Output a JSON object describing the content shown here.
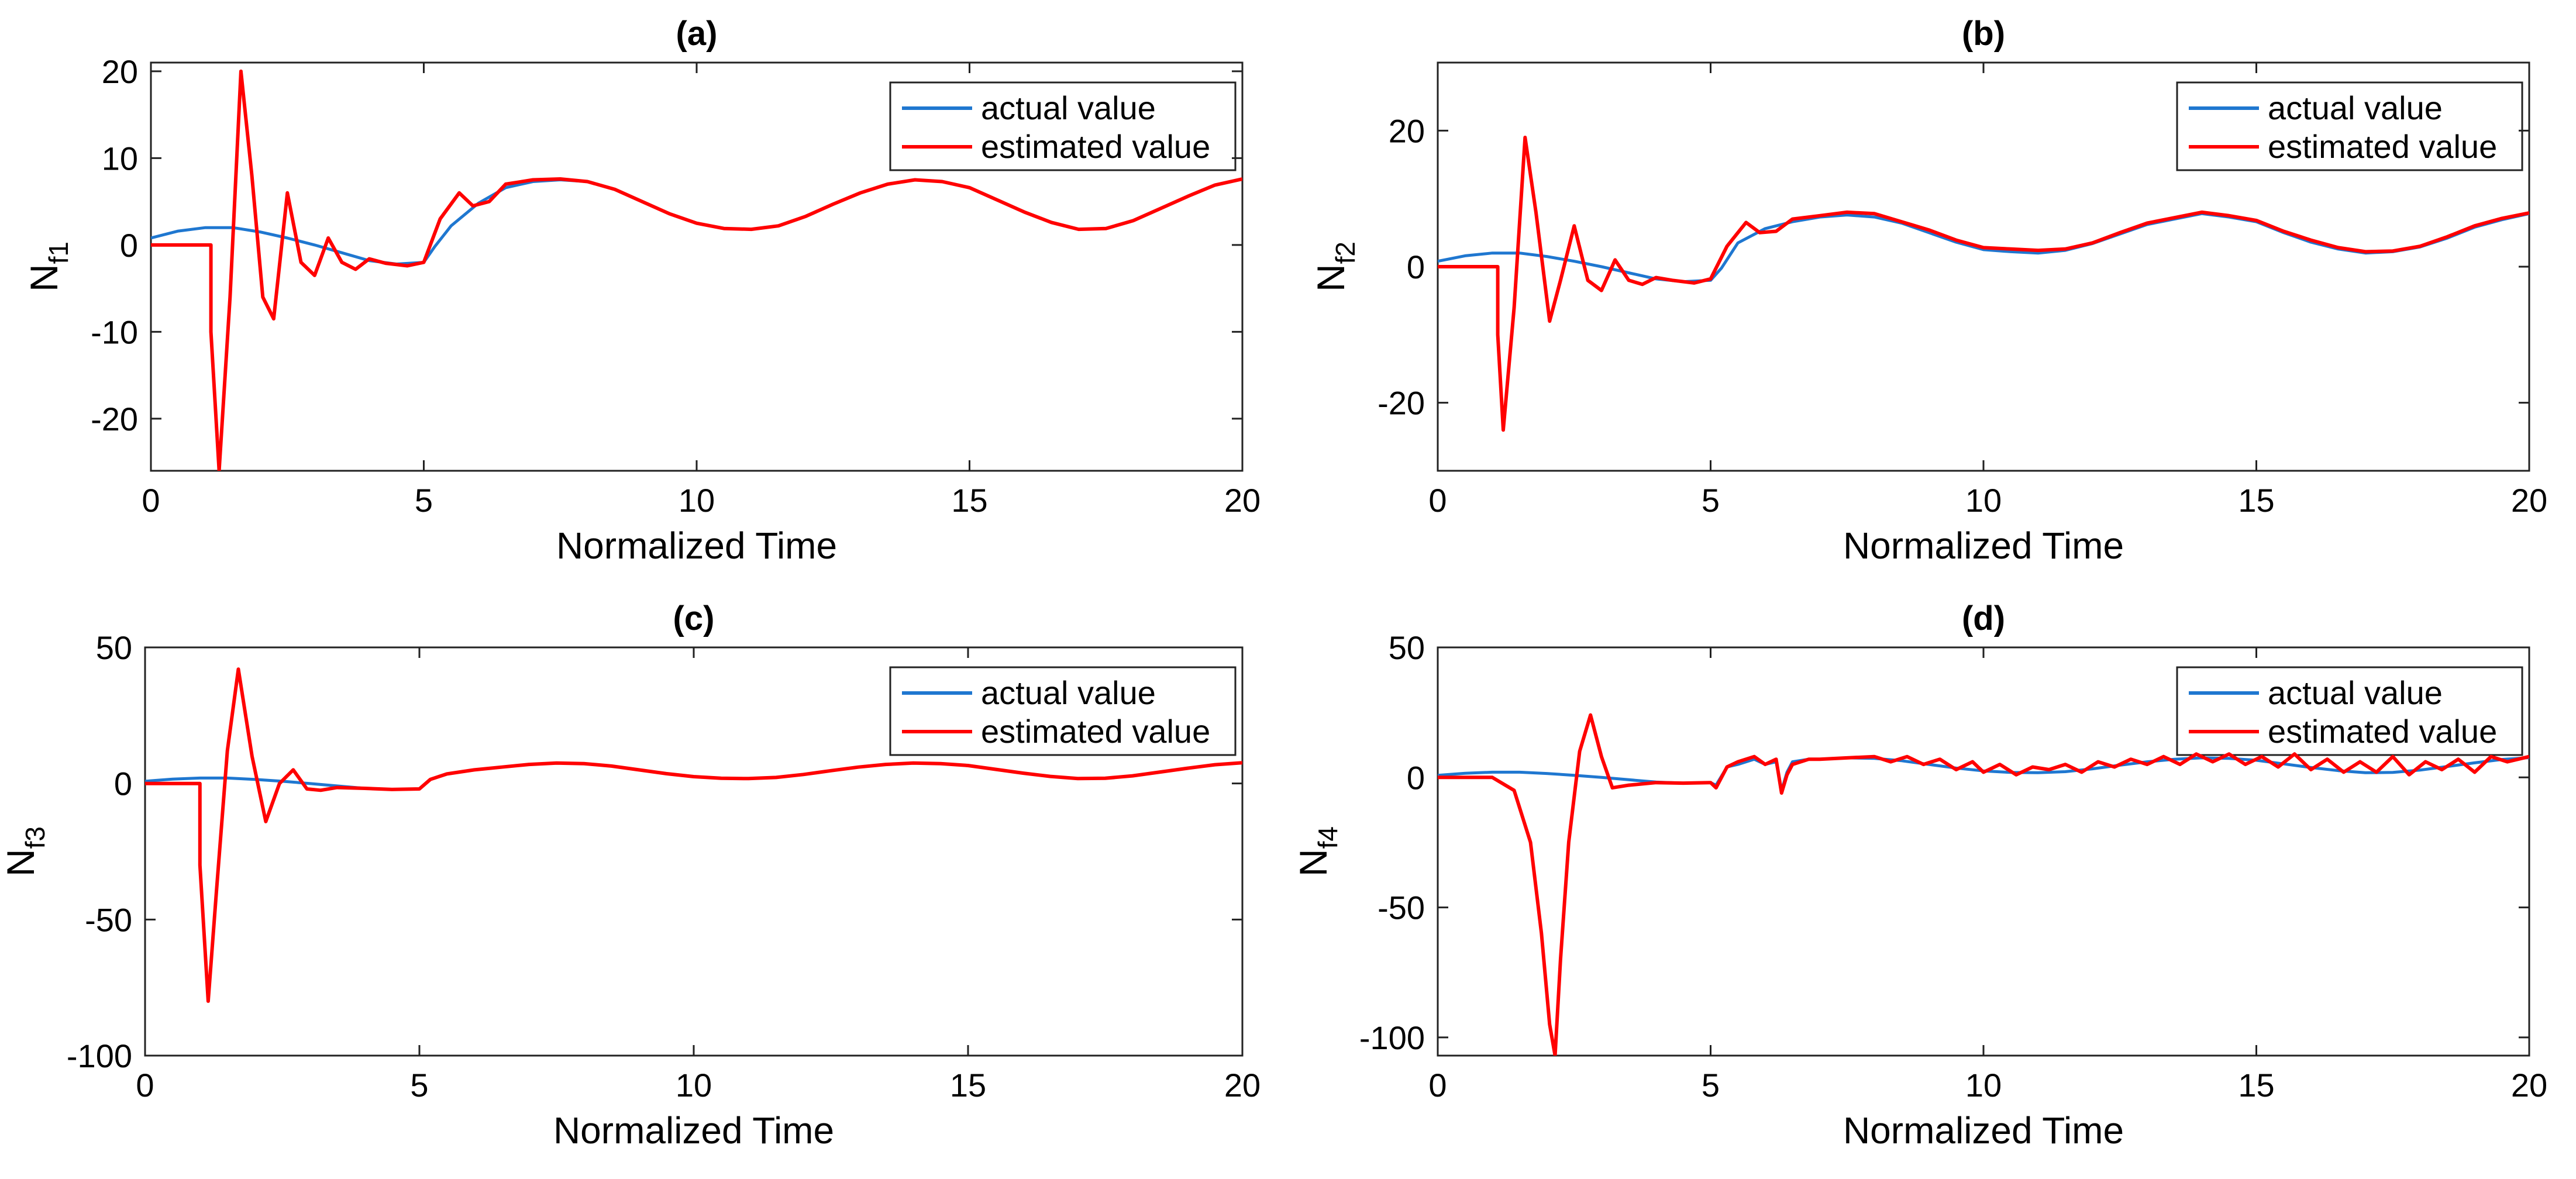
{
  "colors": {
    "actual": "#1f77d0",
    "estimated": "#ff0000",
    "axes": "#222222",
    "background": "#ffffff"
  },
  "chart_data": [
    {
      "id": "a",
      "type": "line",
      "title": "(a)",
      "xlabel": "Normalized Time",
      "ylabel_main": "N",
      "ylabel_sub": "f1",
      "xlim": [
        0,
        20
      ],
      "ylim": [
        -26,
        21
      ],
      "xticks": [
        "0",
        "5",
        "10",
        "15",
        "20"
      ],
      "yticks": [
        "-20",
        "-10",
        "0",
        "10",
        "20"
      ],
      "legend": {
        "position": "top-right",
        "entries": [
          "actual value",
          "estimated value"
        ]
      },
      "series": [
        {
          "name": "actual value",
          "x": [
            0,
            0.5,
            1,
            1.5,
            2,
            2.5,
            3,
            3.5,
            4,
            4.5,
            5,
            5.2,
            5.5,
            6,
            6.5,
            7,
            7.5,
            8,
            8.5,
            9,
            9.5,
            10,
            10.5,
            11,
            11.5,
            12,
            12.5,
            13,
            13.5,
            14,
            14.5,
            15,
            15.5,
            16,
            16.5,
            17,
            17.5,
            18,
            18.5,
            19,
            19.5,
            20
          ],
          "values": [
            0.8,
            1.6,
            2.0,
            2.0,
            1.5,
            0.8,
            0,
            -0.9,
            -1.8,
            -2.2,
            -2.0,
            -0.2,
            2.2,
            4.8,
            6.6,
            7.3,
            7.5,
            7.3,
            6.4,
            5.0,
            3.6,
            2.5,
            1.9,
            1.8,
            2.2,
            3.3,
            4.7,
            6.0,
            7.0,
            7.5,
            7.3,
            6.6,
            5.2,
            3.8,
            2.6,
            1.8,
            1.9,
            2.8,
            4.2,
            5.6,
            6.9,
            7.6
          ]
        },
        {
          "name": "estimated value",
          "x": [
            0,
            1.1,
            1.1,
            1.25,
            1.45,
            1.65,
            1.85,
            2.05,
            2.25,
            2.5,
            2.75,
            3,
            3.25,
            3.5,
            3.75,
            4,
            4.3,
            4.7,
            5,
            5.3,
            5.65,
            5.9,
            6.2,
            6.5,
            7,
            7.5,
            8,
            8.5,
            9,
            9.5,
            10,
            10.5,
            11,
            11.5,
            12,
            12.5,
            13,
            13.5,
            14,
            14.5,
            15,
            15.5,
            16,
            16.5,
            17,
            17.5,
            18,
            18.5,
            19,
            19.5,
            20
          ],
          "values": [
            0,
            0,
            -10,
            -26,
            -6,
            20,
            8,
            -6,
            -8.5,
            6,
            -2,
            -3.5,
            0.8,
            -2,
            -2.8,
            -1.6,
            -2.1,
            -2.4,
            -2.0,
            3,
            6.0,
            4.5,
            5.0,
            7.0,
            7.5,
            7.6,
            7.3,
            6.4,
            5.0,
            3.6,
            2.5,
            1.9,
            1.8,
            2.2,
            3.3,
            4.7,
            6.0,
            7.0,
            7.5,
            7.3,
            6.6,
            5.2,
            3.8,
            2.6,
            1.8,
            1.9,
            2.8,
            4.2,
            5.6,
            6.9,
            7.6
          ]
        }
      ]
    },
    {
      "id": "b",
      "type": "line",
      "title": "(b)",
      "xlabel": "Normalized Time",
      "ylabel_main": "N",
      "ylabel_sub": "f2",
      "xlim": [
        0,
        20
      ],
      "ylim": [
        -30,
        30
      ],
      "xticks": [
        "0",
        "5",
        "10",
        "15",
        "20"
      ],
      "yticks": [
        "-20",
        "0",
        "20"
      ],
      "legend": {
        "position": "top-right",
        "entries": [
          "actual value",
          "estimated value"
        ]
      },
      "series": [
        {
          "name": "actual value",
          "x": [
            0,
            0.5,
            1,
            1.5,
            2,
            2.5,
            3,
            3.5,
            4,
            4.5,
            5,
            5.2,
            5.5,
            6,
            6.5,
            7,
            7.5,
            8,
            8.5,
            9,
            9.5,
            10,
            10.5,
            11,
            11.5,
            12,
            12.5,
            13,
            13.5,
            14,
            14.5,
            15,
            15.5,
            16,
            16.5,
            17,
            17.5,
            18,
            18.5,
            19,
            19.5,
            20
          ],
          "values": [
            0.8,
            1.6,
            2.0,
            2.0,
            1.5,
            0.8,
            0,
            -0.9,
            -1.8,
            -2.2,
            -2.0,
            -0.2,
            3.5,
            5.6,
            6.6,
            7.3,
            7.6,
            7.3,
            6.4,
            5.0,
            3.6,
            2.5,
            2.2,
            2.0,
            2.4,
            3.4,
            4.8,
            6.2,
            7.0,
            7.8,
            7.3,
            6.6,
            5.0,
            3.6,
            2.6,
            2.0,
            2.2,
            2.9,
            4.2,
            5.8,
            6.9,
            7.8
          ]
        },
        {
          "name": "estimated value",
          "x": [
            0,
            1.1,
            1.1,
            1.2,
            1.4,
            1.6,
            1.8,
            2.05,
            2.25,
            2.5,
            2.75,
            3,
            3.25,
            3.5,
            3.75,
            4,
            4.3,
            4.7,
            5,
            5.3,
            5.65,
            5.9,
            6.2,
            6.5,
            7,
            7.5,
            8,
            8.5,
            9,
            9.5,
            10,
            10.5,
            11,
            11.5,
            12,
            12.5,
            13,
            13.5,
            14,
            14.5,
            15,
            15.5,
            16,
            16.5,
            17,
            17.5,
            18,
            18.5,
            19,
            19.5,
            20
          ],
          "values": [
            0,
            0,
            -10,
            -24,
            -6,
            19,
            8,
            -8,
            -2,
            6,
            -2,
            -3.5,
            1,
            -2,
            -2.6,
            -1.6,
            -2.0,
            -2.4,
            -1.8,
            3,
            6.5,
            5.0,
            5.2,
            7.0,
            7.5,
            8.0,
            7.8,
            6.6,
            5.4,
            3.9,
            2.8,
            2.6,
            2.4,
            2.6,
            3.5,
            5.0,
            6.4,
            7.2,
            8.0,
            7.5,
            6.8,
            5.2,
            3.9,
            2.8,
            2.2,
            2.3,
            3.0,
            4.4,
            6.0,
            7.1,
            7.9
          ]
        }
      ]
    },
    {
      "id": "c",
      "type": "line",
      "title": "(c)",
      "xlabel": "Normalized Time",
      "ylabel_main": "N",
      "ylabel_sub": "f3",
      "xlim": [
        0,
        20
      ],
      "ylim": [
        -100,
        50
      ],
      "xticks": [
        "0",
        "5",
        "10",
        "15",
        "20"
      ],
      "yticks": [
        "-100",
        "-50",
        "0",
        "50"
      ],
      "legend": {
        "position": "top-right",
        "entries": [
          "actual value",
          "estimated value"
        ]
      },
      "series": [
        {
          "name": "actual value",
          "x": [
            0,
            0.5,
            1,
            1.5,
            2,
            2.5,
            3,
            3.5,
            4,
            4.5,
            5,
            5.2,
            5.5,
            6,
            6.5,
            7,
            7.5,
            8,
            8.5,
            9,
            9.5,
            10,
            10.5,
            11,
            11.5,
            12,
            12.5,
            13,
            13.5,
            14,
            14.5,
            15,
            15.5,
            16,
            16.5,
            17,
            17.5,
            18,
            18.5,
            19,
            19.5,
            20
          ],
          "values": [
            0.8,
            1.6,
            2.0,
            2.0,
            1.5,
            0.8,
            0,
            -0.9,
            -1.8,
            -2.2,
            -2.0,
            1.5,
            3.5,
            5.0,
            6.0,
            7.0,
            7.5,
            7.3,
            6.4,
            5.0,
            3.6,
            2.5,
            1.9,
            1.8,
            2.2,
            3.3,
            4.7,
            6.0,
            7.0,
            7.5,
            7.3,
            6.6,
            5.2,
            3.8,
            2.6,
            1.8,
            1.9,
            2.8,
            4.2,
            5.6,
            6.9,
            7.6
          ]
        },
        {
          "name": "estimated value",
          "x": [
            0,
            1,
            1,
            1.15,
            1.3,
            1.5,
            1.7,
            1.95,
            2.2,
            2.45,
            2.7,
            2.95,
            3.2,
            3.5,
            4,
            4.5,
            5,
            5.2,
            5.5,
            6,
            6.5,
            7,
            7.5,
            8,
            8.5,
            9,
            9.5,
            10,
            10.5,
            11,
            11.5,
            12,
            12.5,
            13,
            13.5,
            14,
            14.5,
            15,
            15.5,
            16,
            16.5,
            17,
            17.5,
            18,
            18.5,
            19,
            19.5,
            20
          ],
          "values": [
            0,
            0,
            -30,
            -80,
            -40,
            12,
            42,
            10,
            -14,
            0,
            5,
            -2,
            -2.5,
            -1.5,
            -1.8,
            -2.2,
            -2.0,
            1.5,
            3.5,
            5.0,
            6.0,
            7.0,
            7.5,
            7.3,
            6.4,
            5.0,
            3.6,
            2.5,
            1.9,
            1.8,
            2.2,
            3.3,
            4.7,
            6.0,
            7.0,
            7.5,
            7.3,
            6.6,
            5.2,
            3.8,
            2.6,
            1.8,
            1.9,
            2.8,
            4.2,
            5.6,
            6.9,
            7.6
          ]
        }
      ]
    },
    {
      "id": "d",
      "type": "line",
      "title": "(d)",
      "xlabel": "Normalized Time",
      "ylabel_main": "N",
      "ylabel_sub": "f4",
      "xlim": [
        0,
        20
      ],
      "ylim": [
        -107,
        50
      ],
      "xticks": [
        "0",
        "5",
        "10",
        "15",
        "20"
      ],
      "yticks": [
        "-100",
        "-50",
        "0",
        "50"
      ],
      "legend": {
        "position": "top-right",
        "entries": [
          "actual value",
          "estimated value"
        ]
      },
      "series": [
        {
          "name": "actual value",
          "x": [
            0,
            0.5,
            1,
            1.5,
            2,
            2.5,
            3,
            3.5,
            4,
            4.5,
            5,
            5.1,
            5.3,
            5.5,
            5.8,
            6,
            6.2,
            6.3,
            6.4,
            6.5,
            6.8,
            7,
            7.5,
            8,
            8.5,
            9,
            9.5,
            10,
            10.5,
            11,
            11.5,
            12,
            12.5,
            13,
            13.5,
            14,
            14.5,
            15,
            15.5,
            16,
            16.5,
            17,
            17.5,
            18,
            18.5,
            19,
            19.5,
            20
          ],
          "values": [
            0.8,
            1.6,
            2.0,
            2.0,
            1.5,
            0.8,
            0,
            -0.9,
            -1.8,
            -2.2,
            -2.0,
            -3,
            4,
            5,
            7,
            5,
            6,
            -5,
            2,
            6,
            7,
            7,
            7.5,
            7.3,
            6.4,
            5.0,
            3.6,
            2.5,
            1.9,
            1.8,
            2.2,
            3.3,
            4.7,
            6.0,
            7.0,
            7.5,
            7.3,
            6.6,
            5.2,
            3.8,
            2.6,
            1.8,
            1.9,
            2.8,
            4.2,
            5.6,
            6.9,
            7.6
          ]
        },
        {
          "name": "estimated value",
          "x": [
            0,
            1,
            1.4,
            1.7,
            1.9,
            2.05,
            2.15,
            2.25,
            2.4,
            2.6,
            2.8,
            3.0,
            3.2,
            3.5,
            4,
            4.5,
            5,
            5.1,
            5.3,
            5.5,
            5.8,
            6,
            6.2,
            6.3,
            6.4,
            6.5,
            6.8,
            7,
            7.5,
            8,
            8.3,
            8.6,
            8.9,
            9.2,
            9.5,
            9.8,
            10,
            10.3,
            10.6,
            10.9,
            11.2,
            11.5,
            11.8,
            12.1,
            12.4,
            12.7,
            13,
            13.3,
            13.6,
            13.9,
            14.2,
            14.5,
            14.8,
            15.1,
            15.4,
            15.7,
            16,
            16.3,
            16.6,
            16.9,
            17.2,
            17.5,
            17.8,
            18.1,
            18.4,
            18.7,
            19,
            19.3,
            19.6,
            20
          ],
          "values": [
            0,
            0,
            -5,
            -25,
            -60,
            -95,
            -107,
            -70,
            -25,
            10,
            24,
            8,
            -4,
            -3,
            -2,
            -2.2,
            -2.0,
            -4,
            4,
            6,
            8,
            5,
            7,
            -6,
            1,
            5,
            7,
            7,
            7.5,
            8,
            6,
            8,
            5,
            7,
            3,
            6,
            2,
            5,
            1,
            4,
            3,
            5,
            2,
            6,
            4,
            7,
            5,
            8,
            5,
            9,
            6,
            9,
            5,
            8,
            4,
            9,
            3,
            7,
            2,
            6,
            2,
            8,
            1,
            6,
            3,
            7,
            2,
            8,
            6,
            8
          ]
        }
      ]
    }
  ]
}
